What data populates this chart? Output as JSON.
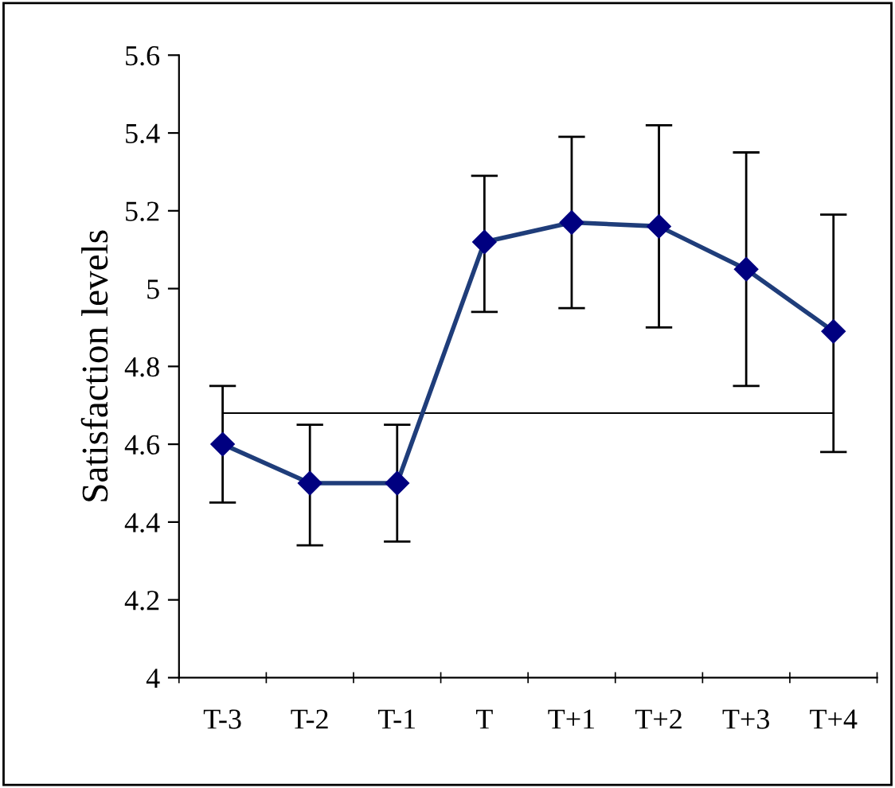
{
  "chart_data": {
    "type": "line",
    "ylabel": "Satisfaction levels",
    "categories": [
      "T-3",
      "T-2",
      "T-1",
      "T",
      "T+1",
      "T+2",
      "T+3",
      "T+4"
    ],
    "series": [
      {
        "color": "#1f3d7a",
        "values": [
          4.6,
          4.5,
          4.5,
          5.12,
          5.17,
          5.16,
          5.05,
          4.89
        ],
        "errors": [
          [
            4.45,
            4.75
          ],
          [
            4.34,
            4.65
          ],
          [
            4.35,
            4.65
          ],
          [
            4.94,
            5.29
          ],
          [
            4.95,
            5.39
          ],
          [
            4.9,
            5.42
          ],
          [
            4.75,
            5.35
          ],
          [
            4.58,
            5.19
          ]
        ]
      }
    ],
    "ylim": [
      4,
      5.6
    ],
    "yticks": [
      4,
      4.2,
      4.4,
      4.6,
      4.8,
      5,
      5.2,
      5.4,
      5.6
    ],
    "ref_lines": [
      {
        "axis": "y",
        "value": 4.68,
        "color": "#000000"
      }
    ],
    "marker": "diamond",
    "line_style": "solid",
    "grid": false,
    "legend": false
  }
}
